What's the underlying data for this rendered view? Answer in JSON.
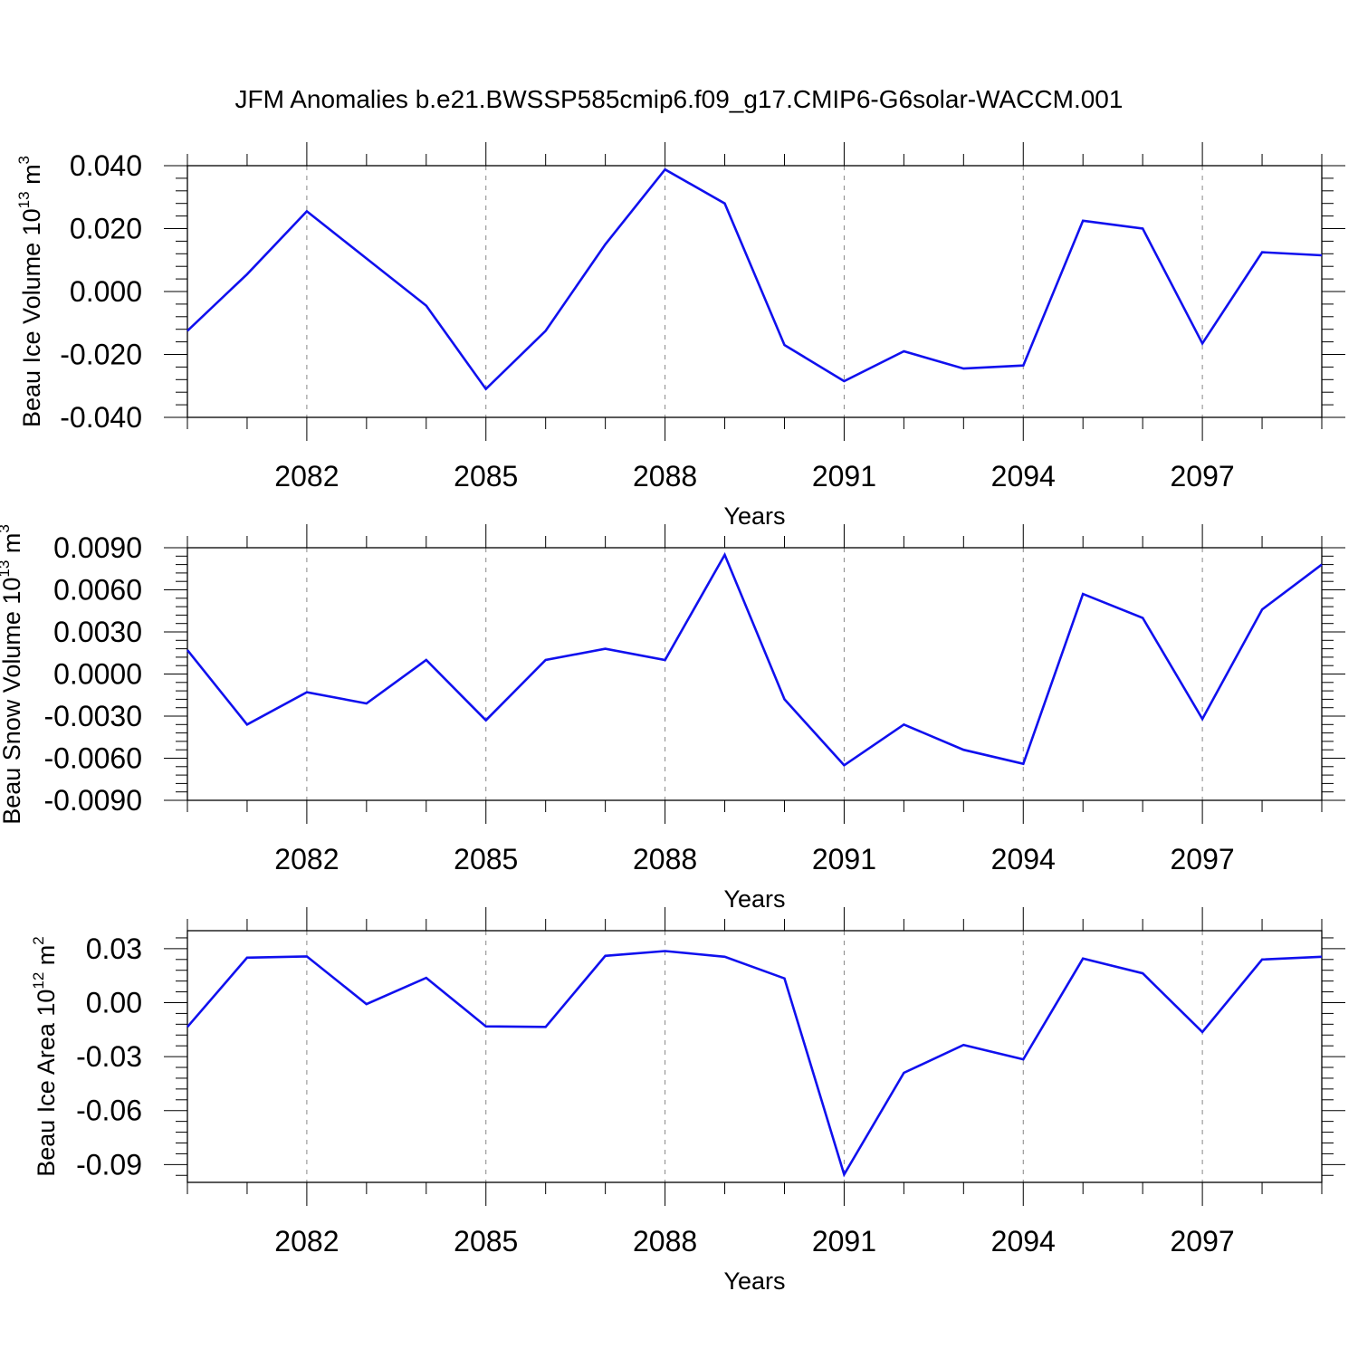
{
  "title": "JFM Anomalies b.e21.BWSSP585cmip6.f09_g17.CMIP6-G6solar-WACCM.001",
  "colors": {
    "series": "#1010ee",
    "axis": "#000000",
    "grid": "#888888"
  },
  "chart_data": [
    {
      "type": "line",
      "ylabel": {
        "text": "Beau Ice Volume 10",
        "exp": "13",
        "unit": " m",
        "unit_exp": "3"
      },
      "xlabel": "Years",
      "xlim": [
        2080,
        2099
      ],
      "ylim": [
        -0.04,
        0.04
      ],
      "x_ticks": [
        "2082",
        "2085",
        "2088",
        "2091",
        "2094",
        "2097"
      ],
      "y_ticks": [
        "0.040",
        "0.020",
        "0.000",
        "-0.020",
        "-0.040"
      ],
      "x_grid": "dashed at labeled years",
      "x": [
        2080,
        2081,
        2082,
        2083,
        2084,
        2085,
        2086,
        2087,
        2088,
        2089,
        2090,
        2091,
        2092,
        2093,
        2094,
        2095,
        2096,
        2097,
        2098,
        2099
      ],
      "values": [
        -0.0125,
        0.0055,
        0.0255,
        0.0105,
        -0.0045,
        -0.031,
        -0.0125,
        0.015,
        0.0388,
        0.028,
        -0.017,
        -0.0285,
        -0.019,
        -0.0245,
        -0.0235,
        0.0225,
        0.02,
        -0.0165,
        0.0125,
        0.0115
      ]
    },
    {
      "type": "line",
      "ylabel": {
        "text": "Beau Snow Volume 10",
        "exp": "13",
        "unit": " m",
        "unit_exp": "3"
      },
      "xlabel": "Years",
      "xlim": [
        2080,
        2099
      ],
      "ylim": [
        -0.009,
        0.009
      ],
      "x_ticks": [
        "2082",
        "2085",
        "2088",
        "2091",
        "2094",
        "2097"
      ],
      "y_ticks": [
        "0.0090",
        "0.0060",
        "0.0030",
        "0.0000",
        "-0.0030",
        "-0.0060",
        "-0.0090"
      ],
      "x_grid": "dashed at labeled years",
      "x": [
        2080,
        2081,
        2082,
        2083,
        2084,
        2085,
        2086,
        2087,
        2088,
        2089,
        2090,
        2091,
        2092,
        2093,
        2094,
        2095,
        2096,
        2097,
        2098,
        2099
      ],
      "values": [
        0.0017,
        -0.0036,
        -0.0013,
        -0.0021,
        0.001,
        -0.0033,
        0.001,
        0.0018,
        0.001,
        0.0085,
        -0.0018,
        -0.0065,
        -0.0036,
        -0.0054,
        -0.0064,
        0.0057,
        0.004,
        -0.0032,
        0.0046,
        0.0078
      ]
    },
    {
      "type": "line",
      "ylabel": {
        "text": "Beau Ice Area 10",
        "exp": "12",
        "unit": " m",
        "unit_exp": "2"
      },
      "xlabel": "Years",
      "xlim": [
        2080,
        2099
      ],
      "ylim": [
        -0.0999,
        0.04
      ],
      "x_ticks": [
        "2082",
        "2085",
        "2088",
        "2091",
        "2094",
        "2097"
      ],
      "y_ticks": [
        "0.03",
        "0.00",
        "-0.03",
        "-0.06",
        "-0.09"
      ],
      "x_grid": "dashed at labeled years",
      "x": [
        2080,
        2081,
        2082,
        2083,
        2084,
        2085,
        2086,
        2087,
        2088,
        2089,
        2090,
        2091,
        2092,
        2093,
        2094,
        2095,
        2096,
        2097,
        2098,
        2099
      ],
      "values": [
        -0.0135,
        0.025,
        0.0257,
        -0.0008,
        0.0138,
        -0.0132,
        -0.0135,
        0.026,
        0.0287,
        0.0255,
        0.0135,
        -0.0955,
        -0.039,
        -0.0235,
        -0.0315,
        0.0245,
        0.0163,
        -0.0163,
        0.024,
        0.0255
      ]
    }
  ]
}
